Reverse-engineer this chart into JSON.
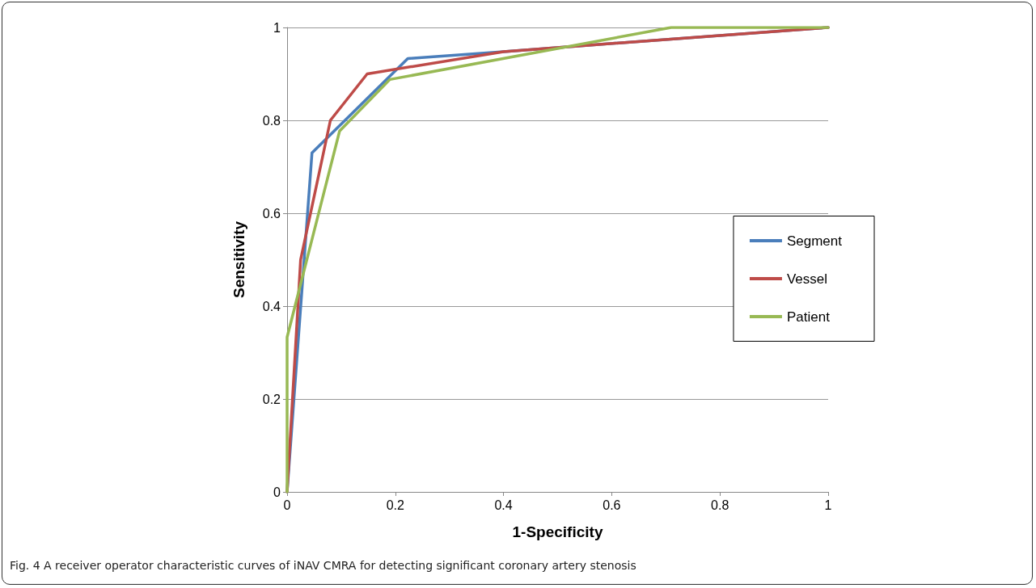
{
  "chart_data": {
    "type": "line",
    "xlabel": "1-Specificity",
    "ylabel": "Sensitivity",
    "annotations": [
      "Fig. 4 A receiver operator characteristic curves of iNAV CMRA for detecting significant coronary artery stenosis"
    ],
    "series": [
      {
        "name": "Segment",
        "color": "#4a7ebb",
        "x": [
          0,
          0.046,
          0.223,
          0.4,
          1
        ],
        "values": [
          0,
          0.73,
          0.933,
          0.948,
          1
        ]
      },
      {
        "name": "Vessel",
        "color": "#be4b48",
        "x": [
          0,
          0.025,
          0.08,
          0.148,
          0.4,
          1
        ],
        "values": [
          0,
          0.5,
          0.8,
          0.9,
          0.948,
          1
        ]
      },
      {
        "name": "Patient",
        "color": "#98b954",
        "x": [
          0,
          0,
          0.097,
          0.19,
          0.71,
          1
        ],
        "values": [
          0,
          0.333,
          0.777,
          0.888,
          1,
          1
        ]
      }
    ],
    "xlim": [
      0,
      1
    ],
    "xticks": [
      0,
      0.2,
      0.4,
      0.6,
      0.8,
      1
    ],
    "ylim": [
      0,
      1
    ],
    "yticks": [
      0,
      0.2,
      0.4,
      0.6,
      0.8,
      1
    ],
    "grid": "y",
    "legend": "right",
    "marker": "none",
    "line_style": "solid"
  }
}
